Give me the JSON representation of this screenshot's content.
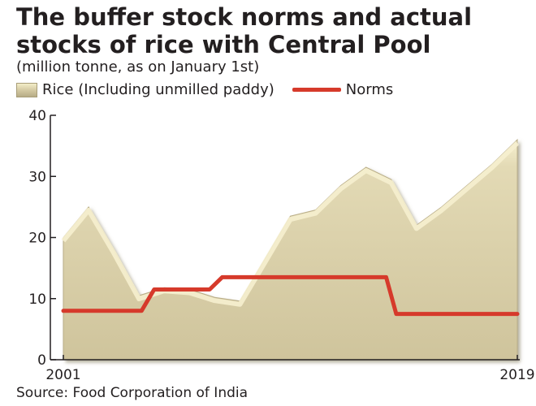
{
  "chart_data": {
    "type": "area",
    "title": "The buffer stock norms and actual stocks of rice with Central Pool",
    "subtitle": "(million tonne, as on January 1st)",
    "source": "Source: Food Corporation of India",
    "xlabel": "",
    "ylabel": "",
    "ylim": [
      0,
      40
    ],
    "yticks": [
      0,
      10,
      20,
      30,
      40
    ],
    "xlim": [
      2001,
      2019
    ],
    "xtick_labels": [
      {
        "year": 2001,
        "label": "2001"
      },
      {
        "year": 2019,
        "label": "2019"
      }
    ],
    "grid": false,
    "colors": {
      "area_fill": "#d7cda6",
      "area_highlight": "#f6f0cf",
      "area_edge": "#b9ad87",
      "norms_line": "#d63a2b",
      "axis": "#231f20"
    },
    "series": [
      {
        "name": "Rice (Including unmilled paddy)",
        "kind": "area",
        "x": [
          2001,
          2002,
          2003,
          2004,
          2005,
          2006,
          2007,
          2008,
          2009,
          2010,
          2011,
          2012,
          2013,
          2014,
          2015,
          2016,
          2017,
          2018,
          2019
        ],
        "values": [
          20.0,
          25.0,
          18.0,
          10.5,
          11.8,
          11.5,
          10.2,
          9.6,
          16.5,
          23.5,
          24.5,
          28.5,
          31.5,
          29.5,
          22.0,
          25.0,
          28.5,
          32.0,
          36.0
        ]
      },
      {
        "name": "Norms",
        "kind": "step",
        "x": [
          2001,
          2004.1,
          2004.6,
          2006.8,
          2007.3,
          2011.0,
          2013.8,
          2014.2,
          2019.0
        ],
        "values": [
          8.0,
          8.0,
          11.5,
          11.5,
          13.5,
          13.5,
          13.5,
          7.5,
          7.5
        ]
      }
    ]
  }
}
